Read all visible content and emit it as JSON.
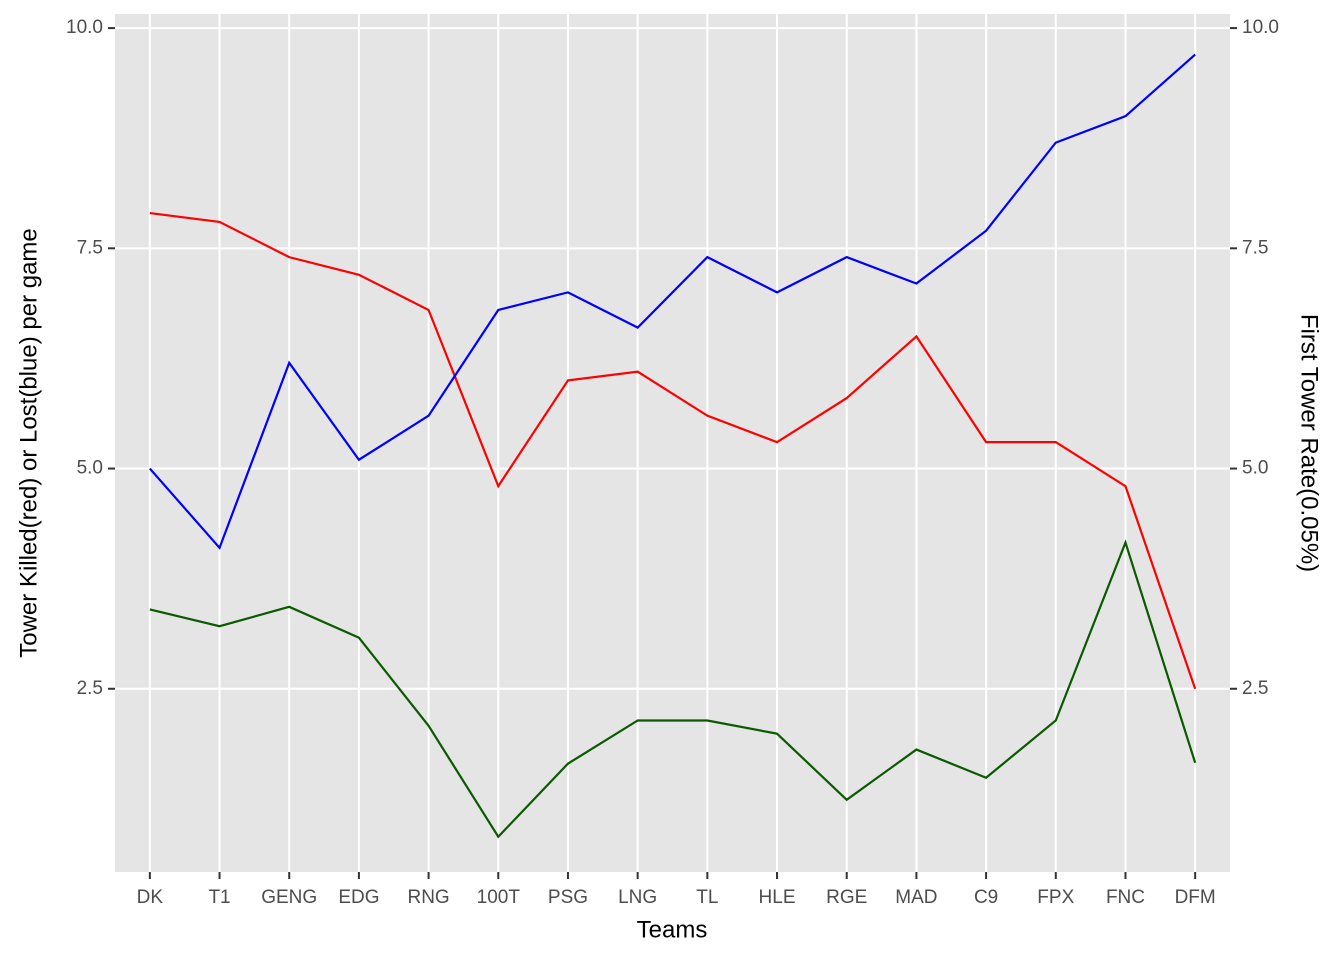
{
  "chart_data": {
    "type": "line",
    "x_label": "Teams",
    "y_label": "Tower Killed(red) or Lost(blue) per game",
    "y2_label": "First Tower Rate(0.05%)",
    "y2_label_color": "#0a5a00",
    "categories": [
      "DK",
      "T1",
      "GENG",
      "EDG",
      "RNG",
      "100T",
      "PSG",
      "LNG",
      "TL",
      "HLE",
      "RGE",
      "MAD",
      "C9",
      "FPX",
      "FNC",
      "DFM"
    ],
    "series": [
      {
        "color": "#ff0000",
        "values": [
          7.9,
          7.8,
          7.4,
          7.2,
          6.8,
          4.8,
          6.0,
          6.1,
          5.6,
          5.3,
          5.8,
          6.5,
          5.3,
          5.3,
          4.8,
          2.5
        ]
      },
      {
        "color": "#0000ff",
        "values": [
          5.0,
          4.1,
          6.2,
          5.1,
          5.6,
          6.8,
          7.0,
          6.6,
          7.4,
          7.0,
          7.4,
          7.1,
          7.7,
          8.7,
          9.0,
          9.7
        ]
      },
      {
        "color": "#0a5a00",
        "axis": "y2",
        "values": [
          3.4,
          3.21,
          3.43,
          3.08,
          2.08,
          0.82,
          1.65,
          2.14,
          2.14,
          1.99,
          1.24,
          1.81,
          1.49,
          2.14,
          4.16,
          1.66
        ]
      }
    ],
    "ylim": [
      0.42,
      10.16
    ],
    "yticks": [
      {
        "value": 2.5,
        "label": "2.5"
      },
      {
        "value": 5,
        "label": "5.0"
      },
      7.5,
      {
        "value": 10,
        "label": "10.0"
      }
    ],
    "y2lim": [
      0.42,
      10.16
    ],
    "y2ticks": [
      {
        "value": 2.5,
        "label": "2.5"
      },
      {
        "value": 5,
        "label": "5.0"
      },
      7.5,
      {
        "value": 10,
        "label": "10.0"
      }
    ],
    "grid": true
  }
}
